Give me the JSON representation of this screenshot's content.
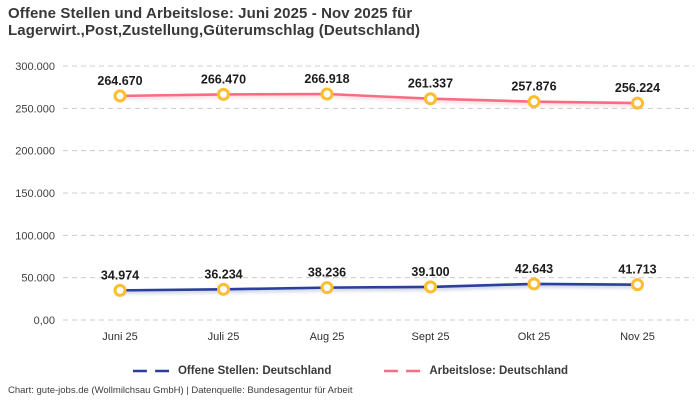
{
  "title": {
    "line1": "Offene Stellen und Arbeitslose: Juni 2025 - Nov 2025 für",
    "line2": "Lagerwirt.,Post,Zustellung,Güterumschlag (Deutschland)"
  },
  "footer": "Chart: gute-jobs.de (Wollmilchsau GmbH) | Datenquelle: Bundesagentur für Arbeit",
  "colors": {
    "offene_stellen_line": "#2a3f9b",
    "arbeitslose_line": "#f66d84",
    "marker_ring": "#fcbd2e",
    "marker_fill": "#ffffff",
    "grid": "#cccccc",
    "text": "#383838"
  },
  "chart_data": {
    "type": "line",
    "title": "Offene Stellen und Arbeitslose: Juni 2025 - Nov 2025 für Lagerwirt.,Post,Zustellung,Güterumschlag (Deutschland)",
    "categories": [
      "Juni 25",
      "Juli 25",
      "Aug 25",
      "Sept 25",
      "Okt 25",
      "Nov 25"
    ],
    "series": [
      {
        "name": "Offene Stellen: Deutschland",
        "color": "#2a3f9b",
        "values": [
          34974,
          36234,
          38236,
          39100,
          42643,
          41713
        ],
        "labels": [
          "34.974",
          "36.234",
          "38.236",
          "39.100",
          "42.643",
          "41.713"
        ]
      },
      {
        "name": "Arbeitslose: Deutschland",
        "color": "#f66d84",
        "values": [
          264670,
          266470,
          266918,
          261337,
          257876,
          256224
        ],
        "labels": [
          "264.670",
          "266.470",
          "266.918",
          "261.337",
          "257.876",
          "256.224"
        ]
      }
    ],
    "y_ticks": [
      {
        "value": 0,
        "label": "0,00"
      },
      {
        "value": 50000,
        "label": "50.000"
      },
      {
        "value": 100000,
        "label": "100.000"
      },
      {
        "value": 150000,
        "label": "150.000"
      },
      {
        "value": 200000,
        "label": "200.000"
      },
      {
        "value": 250000,
        "label": "250.000"
      },
      {
        "value": 300000,
        "label": "300.000"
      }
    ],
    "ylim": [
      0,
      300000
    ],
    "xlabel": "",
    "ylabel": "",
    "grid": "dashed-horizontal",
    "legend_position": "bottom",
    "marker": {
      "fill": "#ffffff",
      "stroke": "#fcbd2e"
    }
  }
}
